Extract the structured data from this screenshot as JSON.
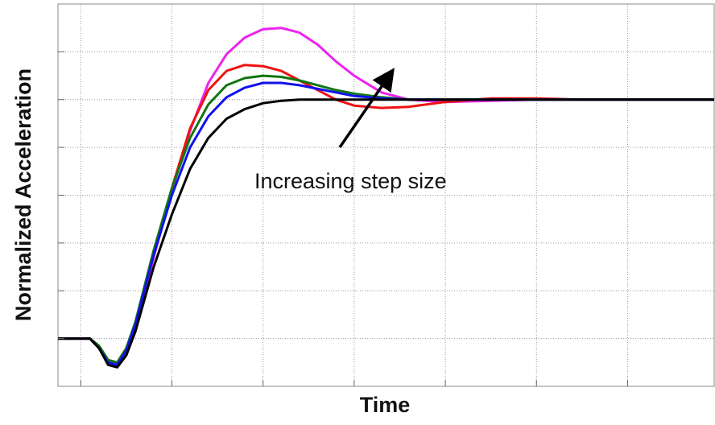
{
  "chart_data": {
    "type": "line",
    "xlabel": "Time",
    "ylabel": "Normalized Acceleration",
    "annotation": "Increasing step size",
    "x": [
      -0.25,
      0,
      0.1,
      0.2,
      0.3,
      0.4,
      0.5,
      0.6,
      0.8,
      1.0,
      1.2,
      1.4,
      1.6,
      1.8,
      2.0,
      2.2,
      2.4,
      2.6,
      2.8,
      3.0,
      3.3,
      3.6,
      4.0,
      4.5,
      5.0,
      5.5,
      6.0,
      6.5,
      6.95
    ],
    "series": [
      {
        "color": "#ee22ee",
        "values": [
          0,
          0,
          0,
          -0.04,
          -0.1,
          -0.11,
          -0.05,
          0.05,
          0.34,
          0.62,
          0.87,
          1.07,
          1.19,
          1.26,
          1.295,
          1.3,
          1.28,
          1.23,
          1.16,
          1.1,
          1.03,
          1.0,
          0.99,
          0.995,
          1.0,
          1.0,
          1.0,
          1.0,
          1.0
        ]
      },
      {
        "color": "#ee1111",
        "values": [
          0,
          0,
          0,
          -0.03,
          -0.09,
          -0.1,
          -0.04,
          0.06,
          0.35,
          0.63,
          0.88,
          1.04,
          1.12,
          1.145,
          1.14,
          1.12,
          1.08,
          1.04,
          1.0,
          0.975,
          0.965,
          0.97,
          0.99,
          1.005,
          1.005,
          1.0,
          1.0,
          1.0,
          1.0
        ]
      },
      {
        "color": "#117711",
        "values": [
          0,
          0,
          0,
          -0.03,
          -0.09,
          -0.1,
          -0.04,
          0.07,
          0.37,
          0.63,
          0.84,
          0.98,
          1.06,
          1.09,
          1.1,
          1.095,
          1.08,
          1.06,
          1.04,
          1.025,
          1.01,
          1.0,
          1.0,
          1.0,
          1.0,
          1.0,
          1.0,
          1.0,
          1.0
        ]
      },
      {
        "color": "#1111ee",
        "values": [
          0,
          0,
          0,
          -0.04,
          -0.1,
          -0.11,
          -0.05,
          0.06,
          0.35,
          0.6,
          0.8,
          0.93,
          1.01,
          1.05,
          1.07,
          1.07,
          1.06,
          1.045,
          1.03,
          1.015,
          1.005,
          1.0,
          1.0,
          1.0,
          1.0,
          1.0,
          1.0,
          1.0,
          1.0
        ]
      },
      {
        "color": "#000000",
        "values": [
          0,
          0,
          0,
          -0.04,
          -0.11,
          -0.12,
          -0.07,
          0.03,
          0.3,
          0.52,
          0.71,
          0.84,
          0.92,
          0.96,
          0.985,
          0.995,
          1.0,
          1.0,
          1.0,
          1.0,
          1.0,
          1.0,
          1.0,
          1.0,
          1.0,
          1.0,
          1.0,
          1.0,
          1.0
        ]
      }
    ],
    "xlim": [
      -0.25,
      6.95
    ],
    "ylim": [
      -0.2,
      1.4
    ],
    "xticks": [
      0,
      1,
      2,
      3,
      4,
      5,
      6
    ],
    "yticks": [
      0,
      0.2,
      0.4,
      0.6,
      0.8,
      1.0,
      1.2
    ],
    "grid": true
  }
}
